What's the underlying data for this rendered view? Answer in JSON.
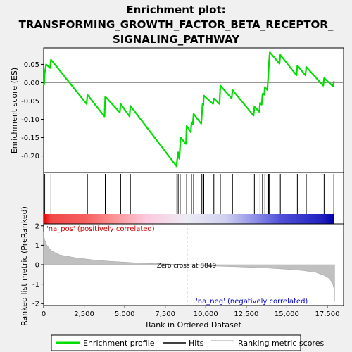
{
  "chart_data": {
    "type": "line",
    "title_lines": [
      "Enrichment plot:",
      "TRANSFORMING_GROWTH_FACTOR_BETA_RECEPTOR_",
      "SIGNALING_PATHWAY"
    ],
    "x_range": [
      0,
      18500
    ],
    "x_ticks": [
      0,
      2500,
      5000,
      7500,
      10000,
      12500,
      15000,
      17500
    ],
    "x_tick_labels": [
      "0",
      "2,500",
      "5,000",
      "7,500",
      "10,000",
      "12,500",
      "15,000",
      "17,500"
    ],
    "xlabel": "Rank in Ordered Dataset",
    "es_panel": {
      "ylabel": "Enrichment score (ES)",
      "ylim": [
        -0.245,
        0.095
      ],
      "y_ticks": [
        0.05,
        0.0,
        -0.05,
        -0.1,
        -0.15,
        -0.2
      ],
      "y_tick_labels": [
        "0.05",
        "0.00",
        "-0.05",
        "-0.10",
        "-0.15",
        "-0.20"
      ],
      "line_color": "#00dd00",
      "profile": [
        [
          0,
          0.0
        ],
        [
          30,
          -0.005
        ],
        [
          60,
          0.025
        ],
        [
          100,
          0.035
        ],
        [
          150,
          0.05
        ],
        [
          400,
          0.04
        ],
        [
          450,
          0.063
        ],
        [
          2650,
          -0.058
        ],
        [
          2700,
          -0.033
        ],
        [
          3750,
          -0.092
        ],
        [
          3800,
          -0.038
        ],
        [
          4700,
          -0.081
        ],
        [
          4750,
          -0.058
        ],
        [
          5300,
          -0.092
        ],
        [
          5350,
          -0.063
        ],
        [
          8200,
          -0.228
        ],
        [
          8220,
          -0.215
        ],
        [
          8260,
          -0.203
        ],
        [
          8300,
          -0.19
        ],
        [
          8370,
          -0.208
        ],
        [
          8420,
          -0.172
        ],
        [
          8450,
          -0.15
        ],
        [
          8780,
          -0.167
        ],
        [
          8820,
          -0.118
        ],
        [
          9080,
          -0.135
        ],
        [
          9120,
          -0.108
        ],
        [
          9200,
          -0.113
        ],
        [
          9250,
          -0.085
        ],
        [
          9720,
          -0.112
        ],
        [
          9760,
          -0.088
        ],
        [
          9800,
          -0.058
        ],
        [
          9850,
          -0.062
        ],
        [
          9880,
          -0.035
        ],
        [
          10450,
          -0.058
        ],
        [
          10500,
          -0.043
        ],
        [
          10850,
          -0.058
        ],
        [
          10900,
          -0.008
        ],
        [
          11600,
          -0.043
        ],
        [
          11650,
          -0.02
        ],
        [
          12950,
          -0.09
        ],
        [
          13000,
          -0.065
        ],
        [
          13300,
          -0.08
        ],
        [
          13350,
          -0.055
        ],
        [
          13450,
          -0.06
        ],
        [
          13500,
          -0.03
        ],
        [
          13600,
          -0.033
        ],
        [
          13650,
          -0.012
        ],
        [
          13800,
          -0.02
        ],
        [
          13830,
          0.002
        ],
        [
          13870,
          0.03
        ],
        [
          13900,
          0.055
        ],
        [
          13950,
          0.083
        ],
        [
          14550,
          0.052
        ],
        [
          14600,
          0.076
        ],
        [
          15600,
          0.02
        ],
        [
          15650,
          0.047
        ],
        [
          16150,
          0.02
        ],
        [
          16200,
          0.043
        ],
        [
          17250,
          -0.008
        ],
        [
          17300,
          0.013
        ],
        [
          17850,
          -0.01
        ],
        [
          17900,
          0.004
        ]
      ]
    },
    "hits_panel": {
      "hit_ranks": [
        60,
        150,
        450,
        2700,
        3800,
        4750,
        5350,
        8220,
        8300,
        8420,
        8820,
        9120,
        9250,
        9760,
        9880,
        10500,
        10900,
        11650,
        13000,
        13350,
        13500,
        13650,
        13830,
        13870,
        13900,
        13950,
        14600,
        15650,
        16200,
        17300,
        17900
      ],
      "gradient_stops": [
        {
          "rank": 0,
          "color": "#e00000"
        },
        {
          "rank": 450,
          "color": "#f04848"
        },
        {
          "rank": 2600,
          "color": "#f66060"
        },
        {
          "rank": 4200,
          "color": "#fa9090"
        },
        {
          "rank": 6300,
          "color": "#fcc8dc"
        },
        {
          "rank": 8849,
          "color": "#ececf4"
        },
        {
          "rank": 11200,
          "color": "#d0d0f0"
        },
        {
          "rank": 13000,
          "color": "#9090e8"
        },
        {
          "rank": 14600,
          "color": "#5050d8"
        },
        {
          "rank": 17200,
          "color": "#2020c0"
        },
        {
          "rank": 17900,
          "color": "#0000a8"
        }
      ]
    },
    "metric_panel": {
      "ylabel": "Ranked list metric (PreRanked)",
      "ylim": [
        -2.1,
        2.1
      ],
      "y_ticks": [
        2,
        1,
        0,
        -1,
        -2
      ],
      "y_tick_labels": [
        "2",
        "1",
        "0",
        "-1",
        "-2"
      ],
      "fill_color": "#c0c0c0",
      "curve": [
        [
          0,
          1.7
        ],
        [
          50,
          1.3
        ],
        [
          200,
          1.0
        ],
        [
          500,
          0.7
        ],
        [
          1000,
          0.5
        ],
        [
          2000,
          0.35
        ],
        [
          3000,
          0.25
        ],
        [
          4000,
          0.18
        ],
        [
          5000,
          0.13
        ],
        [
          6000,
          0.08
        ],
        [
          7000,
          0.05
        ],
        [
          8000,
          0.02
        ],
        [
          8849,
          0.0
        ],
        [
          10000,
          -0.05
        ],
        [
          11000,
          -0.08
        ],
        [
          12000,
          -0.11
        ],
        [
          13000,
          -0.14
        ],
        [
          14000,
          -0.18
        ],
        [
          15000,
          -0.23
        ],
        [
          16000,
          -0.3
        ],
        [
          16800,
          -0.4
        ],
        [
          17300,
          -0.55
        ],
        [
          17600,
          -0.7
        ],
        [
          17800,
          -0.9
        ],
        [
          17900,
          -1.2
        ],
        [
          17950,
          -1.9
        ]
      ],
      "zero_cross_rank": 8849,
      "zero_cross_label": "Zero cross at 8849",
      "pos_label": "'na_pos' (positively correlated)",
      "neg_label": "'na_neg' (negatively correlated)"
    },
    "legend": {
      "placement": "bottom",
      "items": [
        {
          "label": "Enrichment profile",
          "color": "#00dd00",
          "kind": "thick-line"
        },
        {
          "label": "Hits",
          "color": "#000000",
          "kind": "line"
        },
        {
          "label": "Ranking metric scores",
          "color": "#c0c0c0",
          "kind": "line"
        }
      ]
    }
  }
}
